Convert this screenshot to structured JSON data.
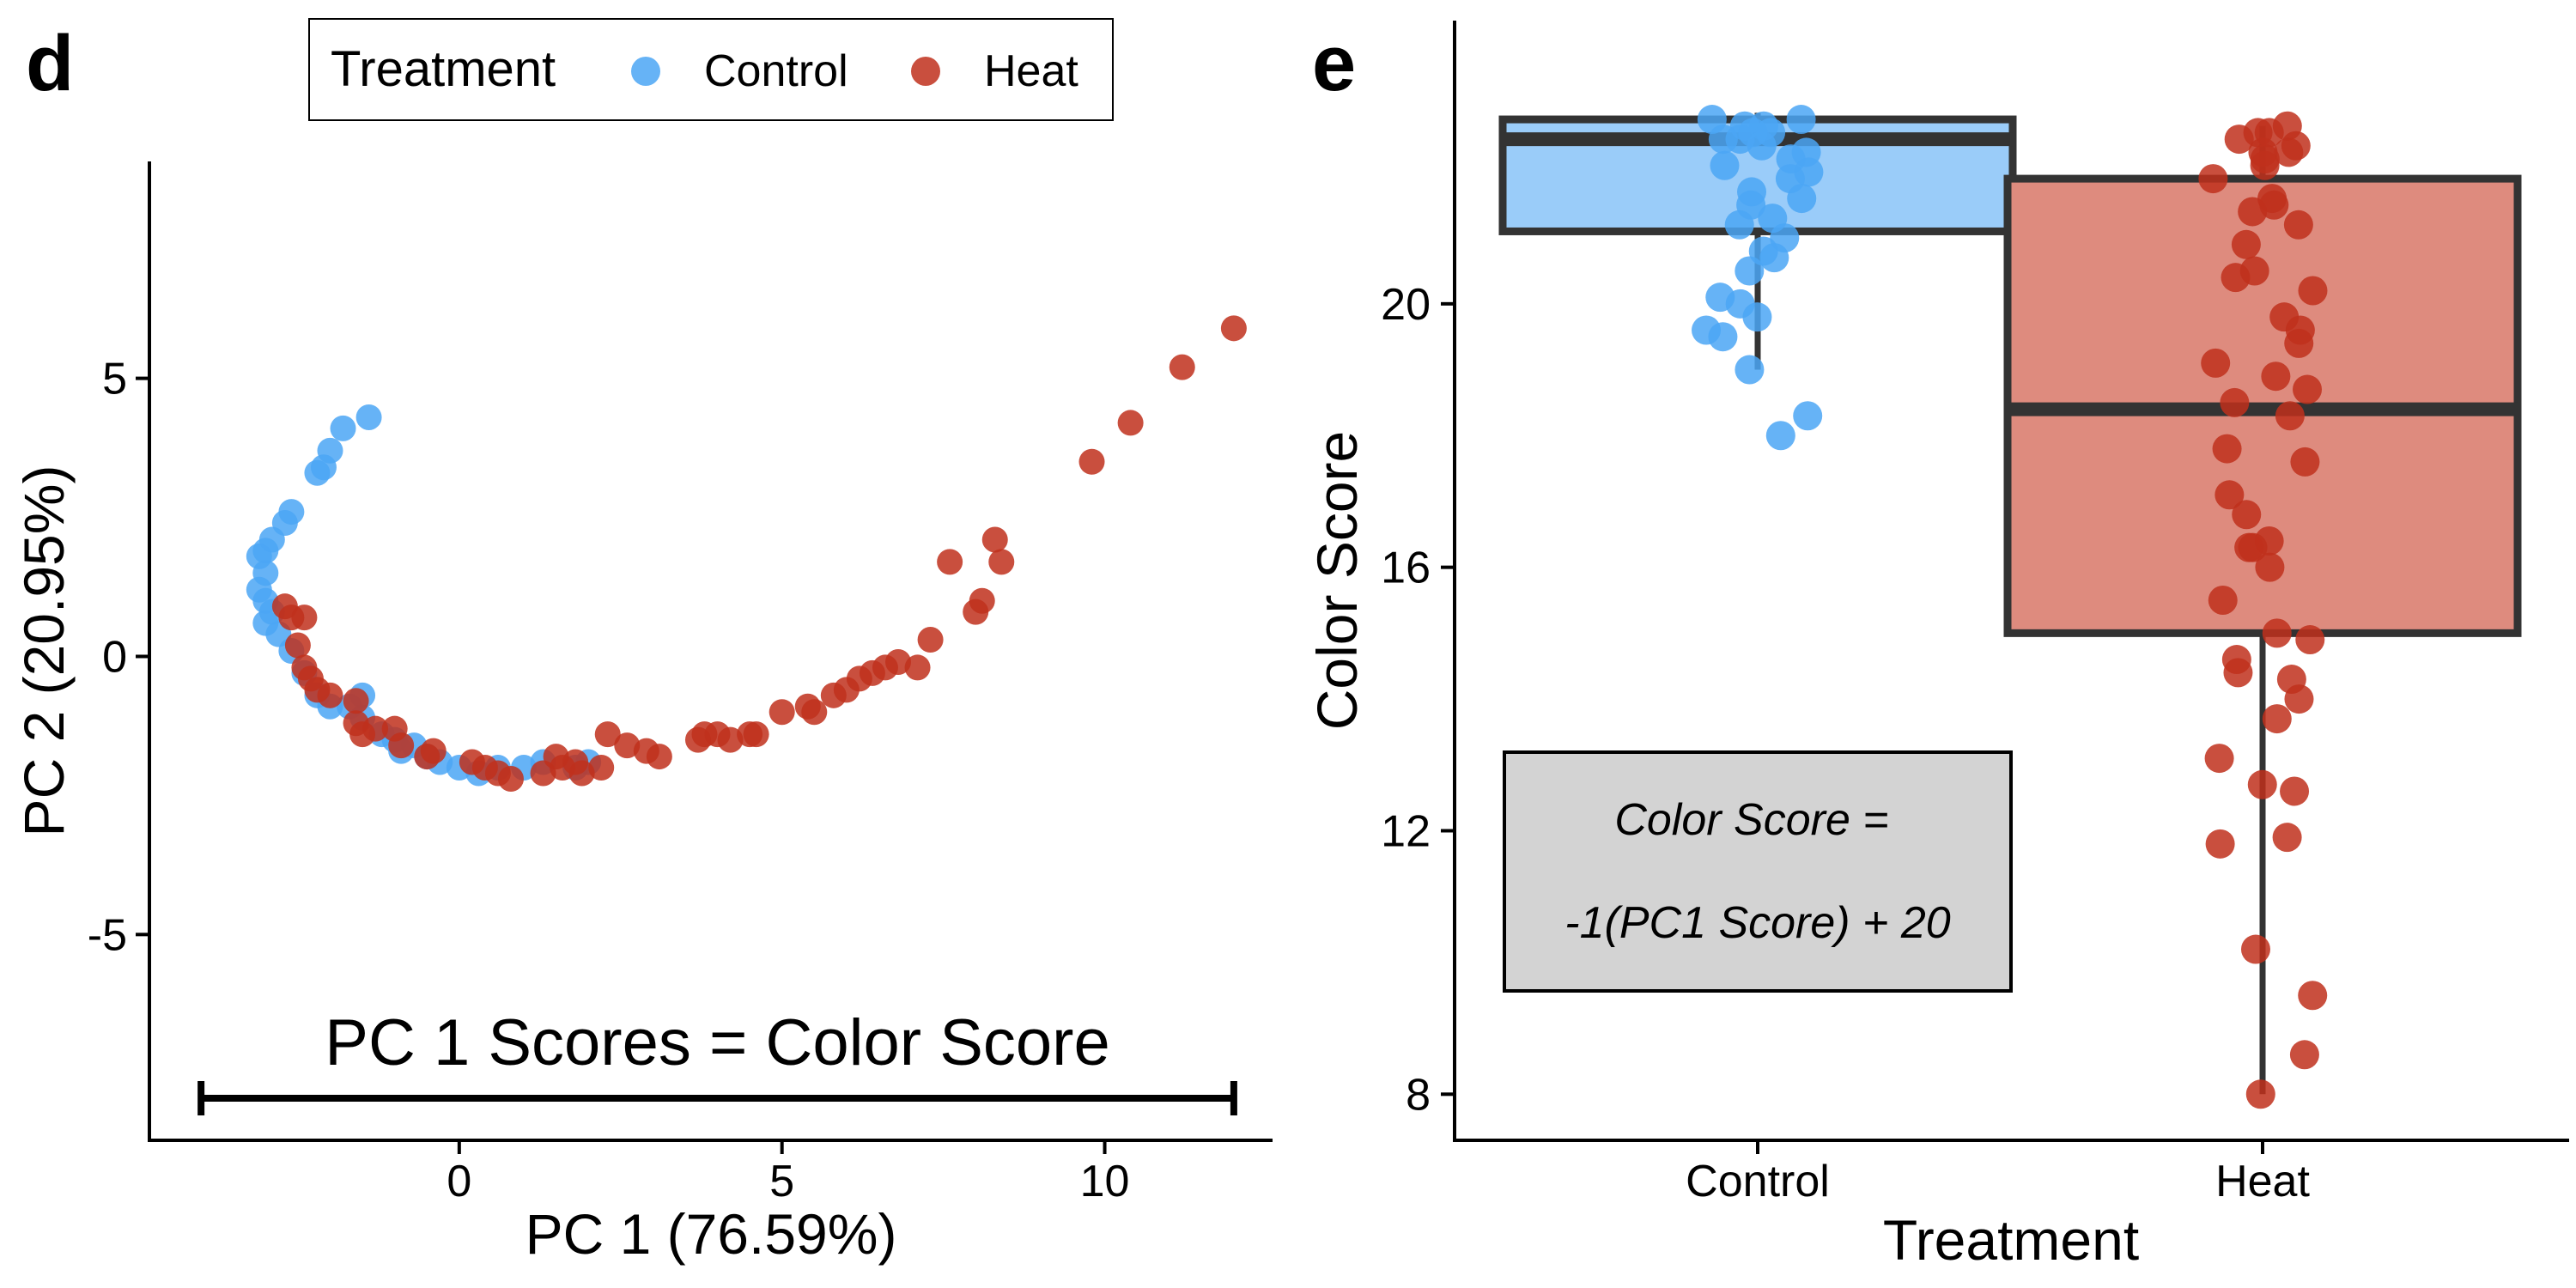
{
  "legend": {
    "title": "Treatment",
    "items": [
      {
        "label": "Control",
        "color": "#4BA6F5"
      },
      {
        "label": "Heat",
        "color": "#C0301C"
      }
    ]
  },
  "chart_data": [
    {
      "panel_label": "d",
      "type": "scatter",
      "xlabel": "PC 1 (76.59%)",
      "ylabel": "PC 2 (20.95%)",
      "xlim": [
        -4.8,
        12.6
      ],
      "ylim": [
        -8.7,
        8.9
      ],
      "x_ticks": [
        0,
        5,
        10
      ],
      "y_ticks": [
        5,
        0,
        -5
      ],
      "y_tick_labels": [
        "5",
        "0",
        "-5"
      ],
      "annotation": {
        "text": "PC 1 Scores = Color Score",
        "range": [
          -4.0,
          12.0
        ]
      },
      "series": [
        {
          "name": "Control",
          "color": "#4BA6F5",
          "points": [
            [
              -1.4,
              4.3
            ],
            [
              -1.8,
              4.1
            ],
            [
              -2.0,
              3.7
            ],
            [
              -2.2,
              3.3
            ],
            [
              -2.1,
              3.4
            ],
            [
              -2.6,
              2.6
            ],
            [
              -2.7,
              2.4
            ],
            [
              -2.9,
              2.1
            ],
            [
              -3.0,
              1.9
            ],
            [
              -3.1,
              1.8
            ],
            [
              -3.0,
              1.5
            ],
            [
              -3.1,
              1.2
            ],
            [
              -3.0,
              1.0
            ],
            [
              -2.9,
              0.8
            ],
            [
              -3.0,
              0.6
            ],
            [
              -2.8,
              0.4
            ],
            [
              -2.6,
              0.1
            ],
            [
              -2.4,
              -0.3
            ],
            [
              -2.2,
              -0.7
            ],
            [
              -2.0,
              -0.9
            ],
            [
              -1.7,
              -0.9
            ],
            [
              -1.5,
              -0.7
            ],
            [
              -1.5,
              -1.1
            ],
            [
              -1.2,
              -1.4
            ],
            [
              -1.0,
              -1.5
            ],
            [
              -0.9,
              -1.7
            ],
            [
              -0.7,
              -1.6
            ],
            [
              -0.5,
              -1.8
            ],
            [
              -0.3,
              -1.9
            ],
            [
              0.0,
              -2.0
            ],
            [
              0.3,
              -2.1
            ],
            [
              0.6,
              -2.0
            ],
            [
              1.0,
              -2.0
            ],
            [
              1.3,
              -1.9
            ],
            [
              1.8,
              -2.0
            ],
            [
              2.0,
              -1.9
            ]
          ]
        },
        {
          "name": "Heat",
          "color": "#C0301C",
          "points": [
            [
              -2.7,
              0.9
            ],
            [
              -2.6,
              0.7
            ],
            [
              -2.4,
              0.7
            ],
            [
              -2.5,
              0.2
            ],
            [
              -2.4,
              -0.2
            ],
            [
              -2.3,
              -0.4
            ],
            [
              -2.2,
              -0.6
            ],
            [
              -2.0,
              -0.7
            ],
            [
              -1.6,
              -0.8
            ],
            [
              -1.6,
              -1.2
            ],
            [
              -1.5,
              -1.4
            ],
            [
              -1.3,
              -1.3
            ],
            [
              -1.0,
              -1.3
            ],
            [
              -0.9,
              -1.6
            ],
            [
              -0.5,
              -1.8
            ],
            [
              -0.4,
              -1.7
            ],
            [
              0.2,
              -1.9
            ],
            [
              0.4,
              -2.0
            ],
            [
              0.6,
              -2.1
            ],
            [
              0.8,
              -2.2
            ],
            [
              1.3,
              -2.1
            ],
            [
              1.5,
              -1.8
            ],
            [
              1.6,
              -2.0
            ],
            [
              1.8,
              -1.9
            ],
            [
              1.9,
              -2.1
            ],
            [
              2.2,
              -2.0
            ],
            [
              2.3,
              -1.4
            ],
            [
              2.6,
              -1.6
            ],
            [
              2.9,
              -1.7
            ],
            [
              3.1,
              -1.8
            ],
            [
              3.7,
              -1.5
            ],
            [
              3.8,
              -1.4
            ],
            [
              4.0,
              -1.4
            ],
            [
              4.2,
              -1.5
            ],
            [
              4.5,
              -1.4
            ],
            [
              4.6,
              -1.4
            ],
            [
              5.0,
              -1.0
            ],
            [
              5.4,
              -0.9
            ],
            [
              5.5,
              -1.0
            ],
            [
              5.8,
              -0.7
            ],
            [
              6.0,
              -0.6
            ],
            [
              6.2,
              -0.4
            ],
            [
              6.4,
              -0.3
            ],
            [
              6.6,
              -0.2
            ],
            [
              6.8,
              -0.1
            ],
            [
              7.1,
              -0.2
            ],
            [
              7.3,
              0.3
            ],
            [
              7.6,
              1.7
            ],
            [
              8.0,
              0.8
            ],
            [
              8.1,
              1.0
            ],
            [
              8.3,
              2.1
            ],
            [
              8.4,
              1.7
            ],
            [
              9.8,
              3.5
            ],
            [
              10.4,
              4.2
            ],
            [
              11.2,
              5.2
            ],
            [
              12.0,
              5.9
            ]
          ]
        }
      ]
    },
    {
      "panel_label": "e",
      "type": "box",
      "xlabel": "Treatment",
      "ylabel": "Color Score",
      "categories": [
        "Control",
        "Heat"
      ],
      "ylim": [
        7.3,
        24.3
      ],
      "y_ticks": [
        8,
        12,
        16,
        20
      ],
      "annotation_lines": [
        "Color Score =",
        "-1(PC1 Score) + 20"
      ],
      "series": [
        {
          "name": "Control",
          "color": "#4BA6F5",
          "box_fill": "#9ACCF9",
          "box": {
            "min": 19.0,
            "q1": 21.1,
            "median": 22.5,
            "q3": 22.8,
            "max": 22.9
          },
          "points": [
            22.8,
            22.8,
            22.7,
            22.7,
            22.6,
            22.6,
            22.5,
            22.5,
            22.4,
            22.3,
            22.2,
            22.1,
            22.0,
            21.9,
            21.7,
            21.6,
            21.5,
            21.3,
            21.2,
            21.0,
            20.8,
            20.7,
            20.5,
            20.1,
            20.0,
            19.8,
            19.6,
            19.5,
            19.0,
            18.3,
            18.0
          ]
        },
        {
          "name": "Heat",
          "color": "#C0301C",
          "box_fill": "#DE8B7E",
          "box": {
            "min": 8.0,
            "q1": 15.0,
            "median": 18.4,
            "q3": 21.9,
            "max": 22.7
          },
          "points": [
            22.7,
            22.6,
            22.6,
            22.5,
            22.4,
            22.3,
            22.3,
            22.2,
            22.1,
            21.9,
            21.6,
            21.5,
            21.4,
            21.2,
            20.9,
            20.5,
            20.4,
            20.2,
            19.8,
            19.6,
            19.4,
            19.1,
            18.9,
            18.7,
            18.5,
            18.3,
            17.8,
            17.6,
            17.1,
            16.8,
            16.4,
            16.3,
            16.3,
            16.0,
            15.5,
            15.0,
            14.9,
            14.6,
            14.4,
            14.3,
            14.0,
            13.7,
            13.1,
            12.7,
            12.6,
            11.9,
            11.8,
            10.2,
            9.5,
            8.6,
            8.0
          ]
        }
      ]
    }
  ]
}
